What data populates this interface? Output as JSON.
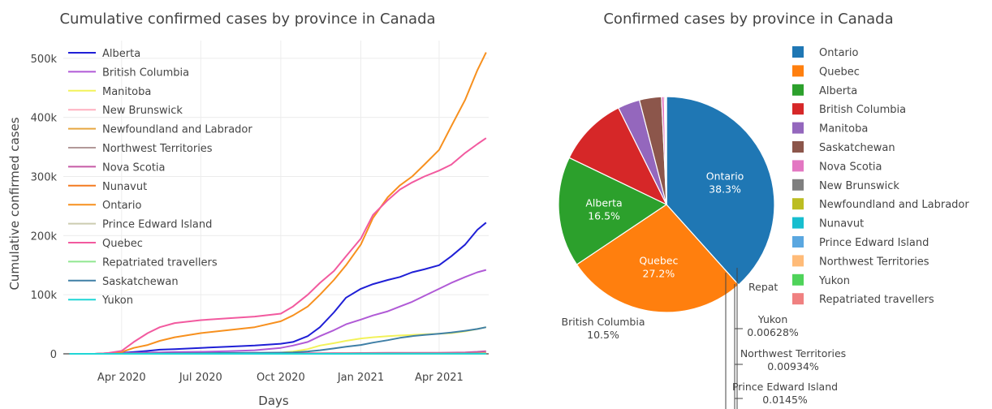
{
  "chart_data": [
    {
      "type": "line",
      "title": "Cumulative confirmed cases by province in Canada",
      "xlabel": "Days",
      "ylabel": "Cumulative confirmed cases",
      "x": [
        "2020-02-01",
        "2020-03-01",
        "2020-03-15",
        "2020-04-01",
        "2020-04-15",
        "2020-05-01",
        "2020-05-15",
        "2020-06-01",
        "2020-07-01",
        "2020-08-01",
        "2020-09-01",
        "2020-10-01",
        "2020-10-15",
        "2020-11-01",
        "2020-11-15",
        "2020-12-01",
        "2020-12-15",
        "2021-01-01",
        "2021-01-15",
        "2021-02-01",
        "2021-02-15",
        "2021-03-01",
        "2021-03-15",
        "2021-04-01",
        "2021-04-15",
        "2021-05-01",
        "2021-05-15",
        "2021-05-25"
      ],
      "xticks": [
        {
          "date": "2020-04-01",
          "label": "Apr 2020"
        },
        {
          "date": "2020-07-01",
          "label": "Jul 2020"
        },
        {
          "date": "2020-10-01",
          "label": "Oct 2020"
        },
        {
          "date": "2021-01-01",
          "label": "Jan 2021"
        },
        {
          "date": "2021-04-01",
          "label": "Apr 2021"
        }
      ],
      "xlim": [
        "2020-01-25",
        "2021-05-28"
      ],
      "ylim": [
        0,
        530000
      ],
      "yticks": [
        {
          "v": 0,
          "label": "0"
        },
        {
          "v": 100000,
          "label": "100k"
        },
        {
          "v": 200000,
          "label": "200k"
        },
        {
          "v": 300000,
          "label": "300k"
        },
        {
          "v": 400000,
          "label": "400k"
        },
        {
          "v": 500000,
          "label": "500k"
        }
      ],
      "grid": true,
      "legend_position": "top-left",
      "series": [
        {
          "name": "Alberta",
          "color": "#1f1fd6",
          "values": [
            0,
            0,
            1000,
            1500,
            3000,
            5000,
            7000,
            8000,
            10000,
            12000,
            14000,
            17000,
            20000,
            30000,
            45000,
            70000,
            95000,
            110000,
            118000,
            125000,
            130000,
            138000,
            143000,
            150000,
            165000,
            185000,
            210000,
            222000
          ]
        },
        {
          "name": "British Columbia",
          "color": "#b05ad6",
          "values": [
            0,
            0,
            500,
            1000,
            1500,
            2000,
            2500,
            3000,
            3500,
            4500,
            6000,
            10000,
            14000,
            20000,
            30000,
            40000,
            50000,
            58000,
            65000,
            72000,
            80000,
            88000,
            98000,
            110000,
            120000,
            130000,
            138000,
            142000
          ]
        },
        {
          "name": "Manitoba",
          "color": "#f2f25a",
          "values": [
            0,
            0,
            0,
            0,
            100,
            200,
            300,
            300,
            350,
            500,
            1000,
            2000,
            4000,
            8000,
            14000,
            18000,
            22000,
            26000,
            28000,
            30000,
            31000,
            32000,
            33000,
            34000,
            35000,
            38000,
            42000,
            45000
          ]
        },
        {
          "name": "New Brunswick",
          "color": "#ffb0c0",
          "values": [
            0,
            0,
            0,
            100,
            100,
            120,
            120,
            130,
            140,
            150,
            180,
            200,
            300,
            350,
            400,
            500,
            600,
            700,
            900,
            1000,
            1200,
            1400,
            1500,
            1600,
            1700,
            1800,
            1900,
            2000
          ]
        },
        {
          "name": "Newfoundland and Labrador",
          "color": "#e6a640",
          "values": [
            0,
            0,
            0,
            100,
            200,
            250,
            260,
            260,
            260,
            260,
            270,
            280,
            290,
            300,
            320,
            340,
            360,
            380,
            400,
            500,
            900,
            1000,
            1000,
            1000,
            1050,
            1100,
            1150,
            1200
          ]
        },
        {
          "name": "Northwest Territories",
          "color": "#b29999",
          "values": [
            0,
            0,
            0,
            5,
            5,
            5,
            5,
            5,
            5,
            5,
            5,
            6,
            6,
            8,
            10,
            15,
            20,
            25,
            28,
            30,
            35,
            40,
            40,
            42,
            44,
            46,
            48,
            50
          ]
        },
        {
          "name": "Nova Scotia",
          "color": "#c65aa6",
          "values": [
            0,
            0,
            0,
            200,
            400,
            800,
            1000,
            1050,
            1060,
            1070,
            1080,
            1090,
            1100,
            1110,
            1150,
            1200,
            1300,
            1400,
            1500,
            1600,
            1650,
            1700,
            1750,
            1800,
            2000,
            2500,
            3500,
            4500
          ]
        },
        {
          "name": "Nunavut",
          "color": "#f47a20",
          "values": [
            0,
            0,
            0,
            0,
            0,
            0,
            0,
            0,
            0,
            0,
            0,
            0,
            0,
            20,
            100,
            200,
            260,
            270,
            280,
            290,
            300,
            310,
            320,
            330,
            340,
            360,
            400,
            450
          ]
        },
        {
          "name": "Ontario",
          "color": "#f7901e",
          "values": [
            0,
            0,
            1000,
            3000,
            10000,
            15000,
            22000,
            28000,
            35000,
            40000,
            45000,
            55000,
            65000,
            80000,
            100000,
            125000,
            150000,
            185000,
            230000,
            265000,
            285000,
            300000,
            320000,
            345000,
            385000,
            430000,
            480000,
            510000
          ]
        },
        {
          "name": "Prince Edward Island",
          "color": "#ccccb0",
          "values": [
            0,
            0,
            0,
            20,
            25,
            25,
            27,
            27,
            30,
            35,
            50,
            60,
            60,
            65,
            70,
            80,
            90,
            100,
            105,
            110,
            115,
            120,
            130,
            140,
            150,
            160,
            170,
            180
          ]
        },
        {
          "name": "Quebec",
          "color": "#f25a9f",
          "values": [
            0,
            0,
            1000,
            5000,
            20000,
            35000,
            45000,
            52000,
            57000,
            60000,
            63000,
            68000,
            80000,
            100000,
            120000,
            140000,
            165000,
            195000,
            235000,
            260000,
            278000,
            290000,
            300000,
            310000,
            320000,
            340000,
            355000,
            365000
          ]
        },
        {
          "name": "Repatriated travellers",
          "color": "#90e690",
          "values": [
            0,
            0,
            13,
            13,
            13,
            13,
            13,
            13,
            13,
            13,
            13,
            13,
            13,
            13,
            13,
            13,
            13,
            13,
            13,
            13,
            13,
            13,
            13,
            13,
            13,
            13,
            13,
            13
          ]
        },
        {
          "name": "Saskatchewan",
          "color": "#3f7fa6",
          "values": [
            0,
            0,
            0,
            100,
            300,
            400,
            600,
            650,
            800,
            1500,
            1800,
            2000,
            2500,
            4000,
            6000,
            9000,
            12000,
            15000,
            19000,
            23000,
            27000,
            30000,
            32000,
            34000,
            36000,
            39000,
            42000,
            45000
          ]
        },
        {
          "name": "Yukon",
          "color": "#20d6d6",
          "values": [
            0,
            0,
            0,
            5,
            10,
            10,
            11,
            11,
            11,
            14,
            15,
            15,
            16,
            18,
            20,
            40,
            60,
            70,
            70,
            72,
            72,
            75,
            75,
            76,
            77,
            78,
            80,
            82
          ]
        }
      ]
    },
    {
      "type": "pie",
      "title": "Confirmed cases by province in Canada",
      "legend_position": "right",
      "slices": [
        {
          "name": "Ontario",
          "value": 38.3,
          "label": "38.3%",
          "color": "#1f77b4"
        },
        {
          "name": "Quebec",
          "value": 27.2,
          "label": "27.2%",
          "color": "#ff7f0e"
        },
        {
          "name": "Alberta",
          "value": 16.5,
          "label": "16.5%",
          "color": "#2ca02c"
        },
        {
          "name": "British Columbia",
          "value": 10.5,
          "label": "10.5%",
          "color": "#d62728"
        },
        {
          "name": "Manitoba",
          "value": 3.3,
          "label": "",
          "color": "#9467bd"
        },
        {
          "name": "Saskatchewan",
          "value": 3.3,
          "label": "",
          "color": "#8c564b"
        },
        {
          "name": "Nova Scotia",
          "value": 0.4,
          "label": "",
          "color": "#e377c2"
        },
        {
          "name": "New Brunswick",
          "value": 0.17,
          "label": "",
          "color": "#7f7f7f"
        },
        {
          "name": "Newfoundland and Labrador",
          "value": 0.09,
          "label": "",
          "color": "#bcbd22"
        },
        {
          "name": "Nunavut",
          "value": 0.04,
          "label": "",
          "color": "#17becf"
        },
        {
          "name": "Prince Edward Island",
          "value": 0.0145,
          "label": "0.0145%",
          "color": "#5aa7e0"
        },
        {
          "name": "Northwest Territories",
          "value": 0.00934,
          "label": "0.00934%",
          "color": "#ffbb78"
        },
        {
          "name": "Yukon",
          "value": 0.00628,
          "label": "0.00628%",
          "color": "#4fd35a"
        },
        {
          "name": "Repatriated travellers",
          "value": 0.001,
          "label": "",
          "color": "#f08080"
        }
      ],
      "truncated_label": "Repat"
    }
  ]
}
